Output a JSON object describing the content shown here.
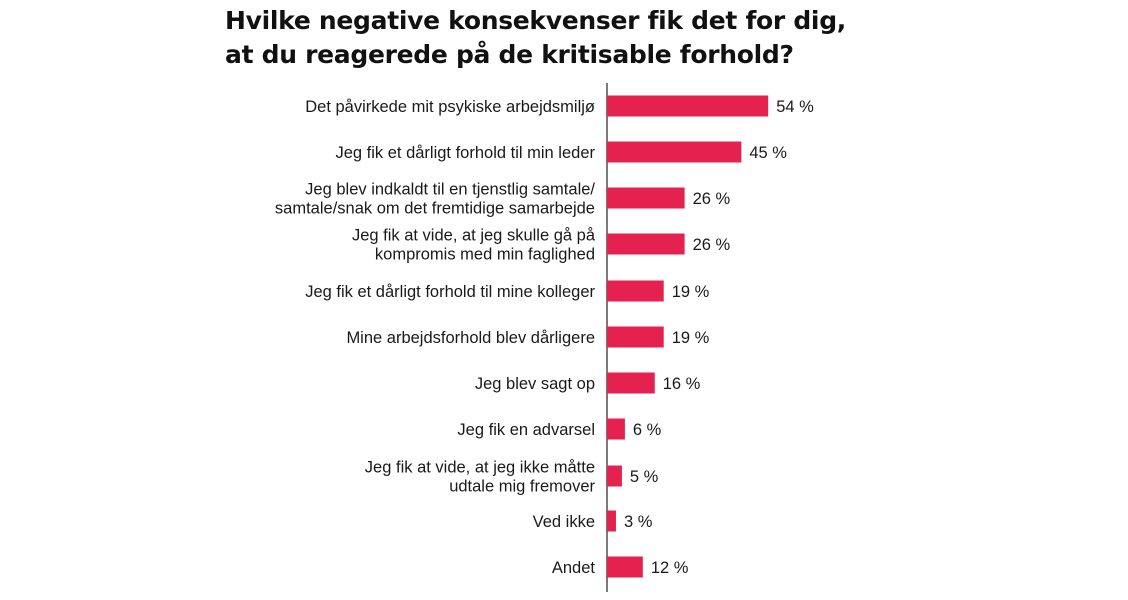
{
  "title_lines": [
    "Hvilke negative konsekvenser fik det for dig,",
    "at du reagerede på de kritisable forhold?"
  ],
  "chart_data": {
    "type": "bar",
    "orientation": "horizontal",
    "title": "Hvilke negative konsekvenser fik det for dig, at du reagerede på de kritisable forhold?",
    "categories": [
      [
        "Det påvirkede mit psykiske arbejdsmiljø"
      ],
      [
        "Jeg fik et dårligt forhold til min leder"
      ],
      [
        "Jeg blev indkaldt til en tjenstlig samtale/",
        "samtale/snak om det fremtidige samarbejde"
      ],
      [
        "Jeg fik at vide, at jeg skulle gå på",
        "kompromis med min faglighed"
      ],
      [
        "Jeg fik et dårligt forhold til mine kolleger"
      ],
      [
        "Mine arbejdsforhold blev dårligere"
      ],
      [
        "Jeg blev sagt op"
      ],
      [
        "Jeg fik en advarsel"
      ],
      [
        "Jeg fik at vide, at jeg ikke måtte",
        "udtale mig fremover"
      ],
      [
        "Ved ikke"
      ],
      [
        "Andet"
      ]
    ],
    "values": [
      54,
      45,
      26,
      26,
      19,
      19,
      16,
      6,
      5,
      3,
      12
    ],
    "value_labels": [
      "54 %",
      "45 %",
      "26 %",
      "26 %",
      "19 %",
      "19 %",
      "16 %",
      "6 %",
      "5 %",
      "3 %",
      "12 %"
    ],
    "unit": "%",
    "xlim": [
      0,
      100
    ],
    "grid": false,
    "legend": "none",
    "bar_color": "#e5224f",
    "axis_color": "#222222"
  }
}
